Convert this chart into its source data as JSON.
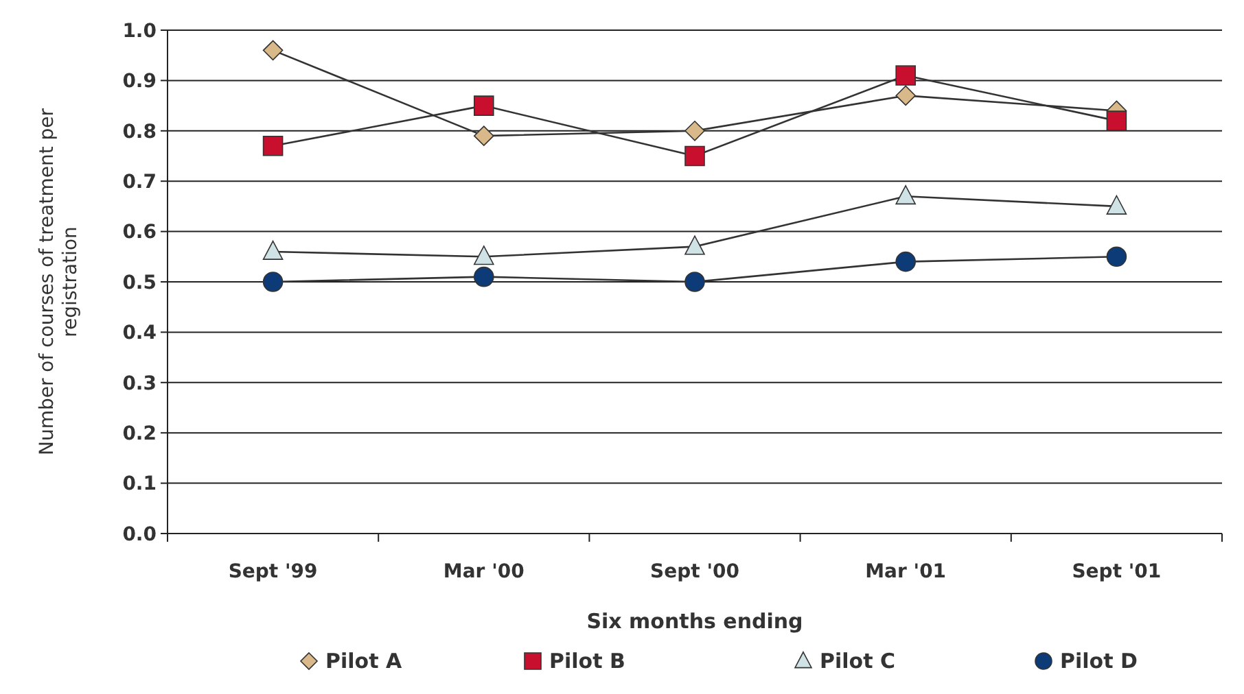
{
  "chart_data": {
    "type": "line",
    "xlabel": "Six months ending",
    "ylabel": "Number of courses of treatment per registration",
    "categories": [
      "Sept '99",
      "Mar '00",
      "Sept '00",
      "Mar '01",
      "Sept '01"
    ],
    "series": [
      {
        "name": "Pilot A",
        "color": "#d9b98a",
        "marker": "diamond",
        "values": [
          0.96,
          0.79,
          0.8,
          0.87,
          0.84
        ]
      },
      {
        "name": "Pilot B",
        "color": "#c8102e",
        "marker": "square",
        "values": [
          0.77,
          0.85,
          0.75,
          0.91,
          0.82
        ]
      },
      {
        "name": "Pilot C",
        "color": "#cfe3e6",
        "marker": "triangle",
        "values": [
          0.56,
          0.55,
          0.57,
          0.67,
          0.65
        ]
      },
      {
        "name": "Pilot D",
        "color": "#0d3b78",
        "marker": "circle",
        "values": [
          0.5,
          0.51,
          0.5,
          0.54,
          0.55
        ]
      }
    ],
    "ylim": [
      0,
      1
    ],
    "yticks": [
      {
        "value": 0,
        "label": "0.0"
      },
      {
        "value": 0.1,
        "label": "0.1"
      },
      {
        "value": 0.2,
        "label": "0.2"
      },
      {
        "value": 0.3,
        "label": "0.3"
      },
      {
        "value": 0.4,
        "label": "0.4"
      },
      {
        "value": 0.5,
        "label": "0.5"
      },
      {
        "value": 0.6,
        "label": "0.6"
      },
      {
        "value": 0.7,
        "label": "0.7"
      },
      {
        "value": 0.8,
        "label": "0.8"
      },
      {
        "value": 0.9,
        "label": "0.9"
      },
      {
        "value": 1,
        "label": "1.0"
      }
    ],
    "grid": "y",
    "legend": "bottom",
    "line_style": "solid"
  }
}
